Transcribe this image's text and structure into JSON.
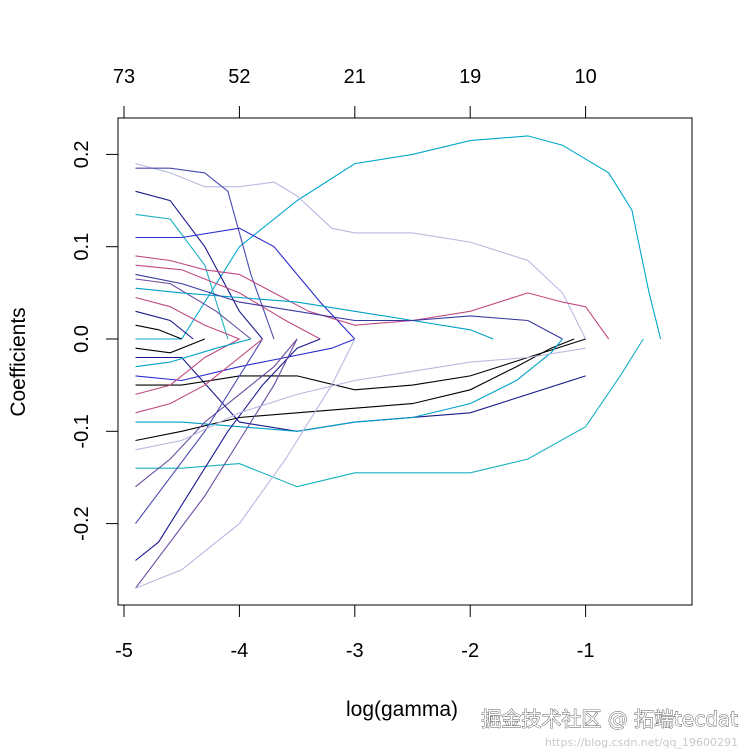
{
  "chart_data": {
    "type": "line",
    "title": "",
    "xlabel": "log(gamma)",
    "ylabel": "Coefficients",
    "xlim": [
      -5,
      -0.3
    ],
    "ylim": [
      -0.29,
      0.24
    ],
    "x_ticks": [
      -5,
      -4,
      -3,
      -2,
      -1
    ],
    "x_tick_labels": [
      "-5",
      "-4",
      "-3",
      "-2",
      "-1"
    ],
    "y_ticks": [
      -0.2,
      -0.1,
      0.0,
      0.1,
      0.2
    ],
    "y_tick_labels": [
      "-0.2",
      "-0.1",
      "0.0",
      "0.1",
      "0.2"
    ],
    "top_axis_label_positions": [
      -5,
      -4,
      -3,
      -2,
      -1
    ],
    "top_axis_labels": [
      "73",
      "52",
      "21",
      "19",
      "10"
    ],
    "grid": false,
    "legend": "none",
    "colors": [
      "#000000",
      "#1a1a8c",
      "#2a2ad0",
      "#4a4ab0",
      "#6a4aa0",
      "#c04a80",
      "#00a0c8",
      "#18b0c0",
      "#b8b8e0",
      "#3838a0"
    ],
    "series": [
      {
        "color": "#00a8cc",
        "x": [
          -4.9,
          -4.5,
          -4.0,
          -3.5,
          -3.0,
          -2.5,
          -2.0,
          -1.5,
          -1.2,
          -0.8,
          -0.6,
          -0.45,
          -0.35
        ],
        "y": [
          0.0,
          0.0,
          0.1,
          0.15,
          0.19,
          0.2,
          0.215,
          0.22,
          0.21,
          0.18,
          0.14,
          0.05,
          0.0
        ]
      },
      {
        "color": "#18b0c0",
        "x": [
          -4.9,
          -4.5,
          -4.0,
          -3.5,
          -3.0,
          -2.5,
          -2.0,
          -1.5,
          -1.0,
          -0.7,
          -0.5
        ],
        "y": [
          -0.14,
          -0.14,
          -0.135,
          -0.16,
          -0.145,
          -0.145,
          -0.145,
          -0.13,
          -0.095,
          -0.04,
          0.0
        ]
      },
      {
        "color": "#b8b8e0",
        "x": [
          -4.9,
          -4.6,
          -4.3,
          -4.0,
          -3.7,
          -3.5,
          -3.2,
          -3.0,
          -2.5,
          -2.0,
          -1.5,
          -1.2,
          -1.0
        ],
        "y": [
          0.19,
          0.18,
          0.165,
          0.165,
          0.17,
          0.155,
          0.12,
          0.115,
          0.115,
          0.105,
          0.085,
          0.05,
          0.0
        ]
      },
      {
        "color": "#4a4ab0",
        "x": [
          -4.9,
          -4.6,
          -4.3,
          -4.1,
          -3.9,
          -3.7
        ],
        "y": [
          0.185,
          0.185,
          0.18,
          0.16,
          0.07,
          0.0
        ]
      },
      {
        "color": "#1a1a8c",
        "x": [
          -4.9,
          -4.6,
          -4.3,
          -4.0,
          -3.8
        ],
        "y": [
          0.16,
          0.15,
          0.1,
          0.03,
          0.0
        ]
      },
      {
        "color": "#18b0c0",
        "x": [
          -4.9,
          -4.6,
          -4.3,
          -4.1
        ],
        "y": [
          0.135,
          0.13,
          0.08,
          0.0
        ]
      },
      {
        "color": "#2a2ad0",
        "x": [
          -4.9,
          -4.5,
          -4.0,
          -3.7,
          -3.3,
          -3.0
        ],
        "y": [
          0.11,
          0.11,
          0.12,
          0.1,
          0.04,
          0.0
        ]
      },
      {
        "color": "#1a1a8c",
        "x": [
          -4.9,
          -4.5,
          -4.0,
          -3.5,
          -3.0,
          -2.0,
          -1.0
        ],
        "y": [
          -0.02,
          -0.02,
          -0.09,
          -0.1,
          -0.09,
          -0.08,
          -0.04
        ]
      },
      {
        "color": "#c04a80",
        "x": [
          -4.9,
          -4.6,
          -4.3,
          -4.0,
          -3.7,
          -3.4,
          -3.0,
          -2.5,
          -2.0,
          -1.5,
          -1.2,
          -1.0,
          -0.8
        ],
        "y": [
          0.09,
          0.085,
          0.075,
          0.07,
          0.05,
          0.03,
          0.015,
          0.02,
          0.03,
          0.05,
          0.04,
          0.035,
          0.0
        ]
      },
      {
        "color": "#c04a80",
        "x": [
          -4.9,
          -4.5,
          -4.0,
          -3.6,
          -3.3
        ],
        "y": [
          0.08,
          0.075,
          0.05,
          0.02,
          0.0
        ]
      },
      {
        "color": "#6a4aa0",
        "x": [
          -4.9,
          -4.6,
          -4.2,
          -3.9
        ],
        "y": [
          0.065,
          0.06,
          0.03,
          0.0
        ]
      },
      {
        "color": "#00a0c8",
        "x": [
          -4.9,
          -4.5,
          -4.0,
          -3.5,
          -3.0,
          -2.5,
          -2.0,
          -1.8
        ],
        "y": [
          0.055,
          0.05,
          0.045,
          0.04,
          0.03,
          0.02,
          0.01,
          0.0
        ]
      },
      {
        "color": "#c04a80",
        "x": [
          -4.9,
          -4.6,
          -4.3,
          -4.0
        ],
        "y": [
          0.045,
          0.035,
          0.015,
          0.0
        ]
      },
      {
        "color": "#1a1a8c",
        "x": [
          -4.9,
          -4.6,
          -4.4
        ],
        "y": [
          0.03,
          0.02,
          0.0
        ]
      },
      {
        "color": "#000000",
        "x": [
          -4.9,
          -4.7,
          -4.5
        ],
        "y": [
          0.015,
          0.01,
          0.0
        ]
      },
      {
        "color": "#3838a0",
        "x": [
          -4.9,
          -4.5,
          -4.0,
          -3.5,
          -3.0,
          -2.5,
          -2.0,
          -1.5,
          -1.2
        ],
        "y": [
          0.07,
          0.06,
          0.04,
          0.03,
          0.02,
          0.02,
          0.025,
          0.02,
          0.0
        ]
      },
      {
        "color": "#000000",
        "x": [
          -4.9,
          -4.5,
          -4.0,
          -3.5,
          -3.0,
          -2.5,
          -2.0,
          -1.5,
          -1.0
        ],
        "y": [
          -0.05,
          -0.05,
          -0.04,
          -0.04,
          -0.055,
          -0.05,
          -0.04,
          -0.02,
          0.0
        ]
      },
      {
        "color": "#000000",
        "x": [
          -4.9,
          -4.5,
          -4.0,
          -3.5,
          -3.0,
          -2.5,
          -2.0,
          -1.6,
          -1.3,
          -1.1
        ],
        "y": [
          -0.11,
          -0.1,
          -0.085,
          -0.08,
          -0.075,
          -0.07,
          -0.055,
          -0.03,
          -0.01,
          0.0
        ]
      },
      {
        "color": "#00a0c8",
        "x": [
          -4.9,
          -4.5,
          -4.0,
          -3.5,
          -3.0,
          -2.5,
          -2.0,
          -1.6,
          -1.3,
          -1.2
        ],
        "y": [
          -0.09,
          -0.09,
          -0.095,
          -0.1,
          -0.09,
          -0.085,
          -0.07,
          -0.045,
          -0.015,
          0.0
        ]
      },
      {
        "color": "#2a2ad0",
        "x": [
          -4.9,
          -4.5,
          -4.0,
          -3.6,
          -3.2,
          -3.0
        ],
        "y": [
          -0.04,
          -0.045,
          -0.03,
          -0.02,
          -0.01,
          0.0
        ]
      },
      {
        "color": "#6a4aa0",
        "x": [
          -4.9,
          -4.6,
          -4.3,
          -4.0,
          -3.7,
          -3.5
        ],
        "y": [
          -0.16,
          -0.13,
          -0.09,
          -0.06,
          -0.03,
          0.0
        ]
      },
      {
        "color": "#4a4ab0",
        "x": [
          -4.9,
          -4.6,
          -4.3,
          -4.0,
          -3.8
        ],
        "y": [
          -0.2,
          -0.15,
          -0.1,
          -0.04,
          0.0
        ]
      },
      {
        "color": "#1a1a8c",
        "x": [
          -4.9,
          -4.7,
          -4.4,
          -4.1,
          -3.8,
          -3.5,
          -3.3
        ],
        "y": [
          -0.24,
          -0.22,
          -0.16,
          -0.1,
          -0.05,
          -0.01,
          0.0
        ]
      },
      {
        "color": "#6a4aa0",
        "x": [
          -4.9,
          -4.6,
          -4.3,
          -4.0,
          -3.7,
          -3.5
        ],
        "y": [
          -0.27,
          -0.22,
          -0.17,
          -0.11,
          -0.05,
          0.0
        ]
      },
      {
        "color": "#b8b8e0",
        "x": [
          -4.9,
          -4.5,
          -4.0,
          -3.6,
          -3.2,
          -3.0
        ],
        "y": [
          -0.27,
          -0.25,
          -0.2,
          -0.13,
          -0.05,
          0.0
        ]
      },
      {
        "color": "#c04a80",
        "x": [
          -4.9,
          -4.6,
          -4.3,
          -4.0,
          -3.8
        ],
        "y": [
          -0.08,
          -0.07,
          -0.05,
          -0.02,
          0.0
        ]
      },
      {
        "color": "#c04a80",
        "x": [
          -4.9,
          -4.6,
          -4.3,
          -4.0
        ],
        "y": [
          -0.06,
          -0.05,
          -0.02,
          0.0
        ]
      },
      {
        "color": "#00a0c8",
        "x": [
          -4.9,
          -4.6,
          -4.2,
          -3.9
        ],
        "y": [
          -0.03,
          -0.025,
          -0.01,
          0.0
        ]
      },
      {
        "color": "#000000",
        "x": [
          -4.9,
          -4.6,
          -4.3
        ],
        "y": [
          -0.01,
          -0.015,
          0.0
        ]
      },
      {
        "color": "#b8b8e0",
        "x": [
          -4.9,
          -4.5,
          -4.0,
          -3.5,
          -3.0,
          -2.5,
          -2.0,
          -1.5,
          -1.0
        ],
        "y": [
          -0.12,
          -0.11,
          -0.08,
          -0.06,
          -0.045,
          -0.035,
          -0.025,
          -0.02,
          -0.01
        ]
      }
    ]
  },
  "watermark": {
    "text": "掘金技术社区 @ 拓端tecdat",
    "subtext": "https://blog.csdn.net/qq_19600291"
  }
}
